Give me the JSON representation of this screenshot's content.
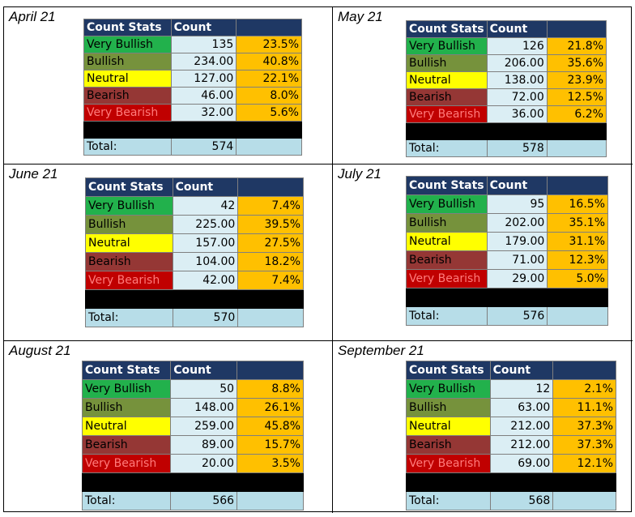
{
  "headers": {
    "label": "Count Stats",
    "count": "Count",
    "pct": ""
  },
  "categories": [
    "Very Bullish",
    "Bullish",
    "Neutral",
    "Bearish",
    "Very Bearish"
  ],
  "total_label": "Total:",
  "panels": [
    {
      "title": "April 21",
      "counts": [
        "135",
        "234.00",
        "127.00",
        "46.00",
        "32.00"
      ],
      "pcts": [
        "23.5%",
        "40.8%",
        "22.1%",
        "8.0%",
        "5.6%"
      ],
      "total": "574"
    },
    {
      "title": "May 21",
      "counts": [
        "126",
        "206.00",
        "138.00",
        "72.00",
        "36.00"
      ],
      "pcts": [
        "21.8%",
        "35.6%",
        "23.9%",
        "12.5%",
        "6.2%"
      ],
      "total": "578"
    },
    {
      "title": "June 21",
      "counts": [
        "42",
        "225.00",
        "157.00",
        "104.00",
        "42.00"
      ],
      "pcts": [
        "7.4%",
        "39.5%",
        "27.5%",
        "18.2%",
        "7.4%"
      ],
      "total": "570"
    },
    {
      "title": "July 21",
      "counts": [
        "95",
        "202.00",
        "179.00",
        "71.00",
        "29.00"
      ],
      "pcts": [
        "16.5%",
        "35.1%",
        "31.1%",
        "12.3%",
        "5.0%"
      ],
      "total": "576"
    },
    {
      "title": "August 21",
      "counts": [
        "50",
        "148.00",
        "259.00",
        "89.00",
        "20.00"
      ],
      "pcts": [
        "8.8%",
        "26.1%",
        "45.8%",
        "15.7%",
        "3.5%"
      ],
      "total": "566"
    },
    {
      "title": "September 21",
      "counts": [
        "12",
        "63.00",
        "212.00",
        "212.00",
        "69.00"
      ],
      "pcts": [
        "2.1%",
        "11.1%",
        "37.3%",
        "37.3%",
        "12.1%"
      ],
      "total": "568"
    }
  ]
}
